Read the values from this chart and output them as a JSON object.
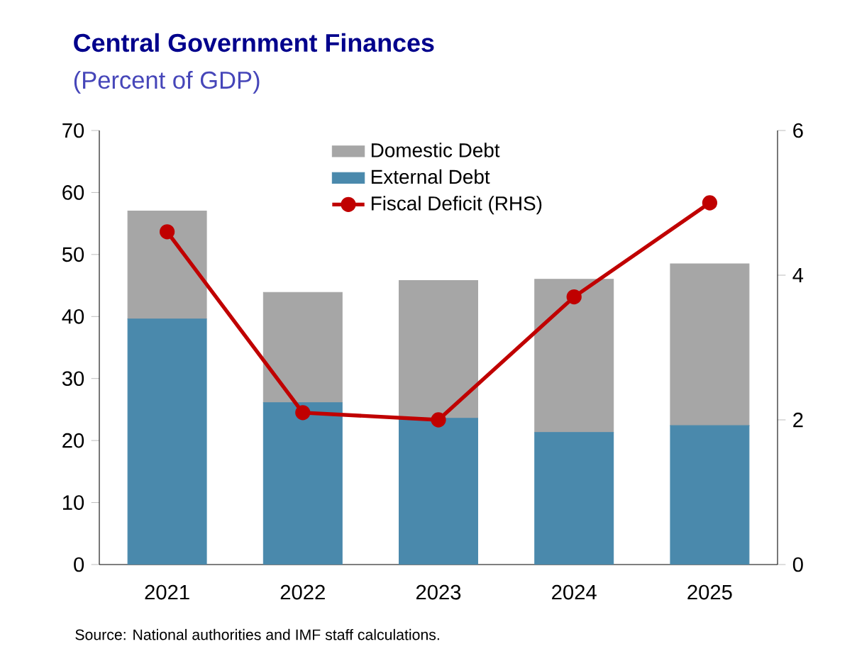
{
  "chart_data": {
    "type": "bar",
    "title": "Central Government Finances",
    "subtitle": "(Percent of GDP)",
    "categories": [
      "2021",
      "2022",
      "2023",
      "2024",
      "2025"
    ],
    "stacked": true,
    "series": [
      {
        "name": "External Debt",
        "color": "#4a89ac",
        "values": [
          39.6,
          26.1,
          23.6,
          21.3,
          22.4
        ]
      },
      {
        "name": "Domestic Debt",
        "color": "#a6a6a6",
        "values": [
          17.4,
          17.8,
          22.2,
          24.7,
          26.1
        ]
      },
      {
        "name": "Fiscal Deficit (RHS)",
        "type": "line",
        "axis": "y2",
        "color": "#c00000",
        "marker": "circle",
        "values": [
          4.6,
          2.1,
          2.0,
          3.7,
          5.0
        ]
      }
    ],
    "ylim": [
      0,
      70
    ],
    "yticks": [
      0,
      10,
      20,
      30,
      40,
      50,
      60,
      70
    ],
    "y2lim": [
      0,
      6
    ],
    "y2ticks": [
      0,
      2,
      4,
      6
    ],
    "legend": "top",
    "annotations": [
      "Source: National authorities and IMF staff calculations."
    ]
  }
}
